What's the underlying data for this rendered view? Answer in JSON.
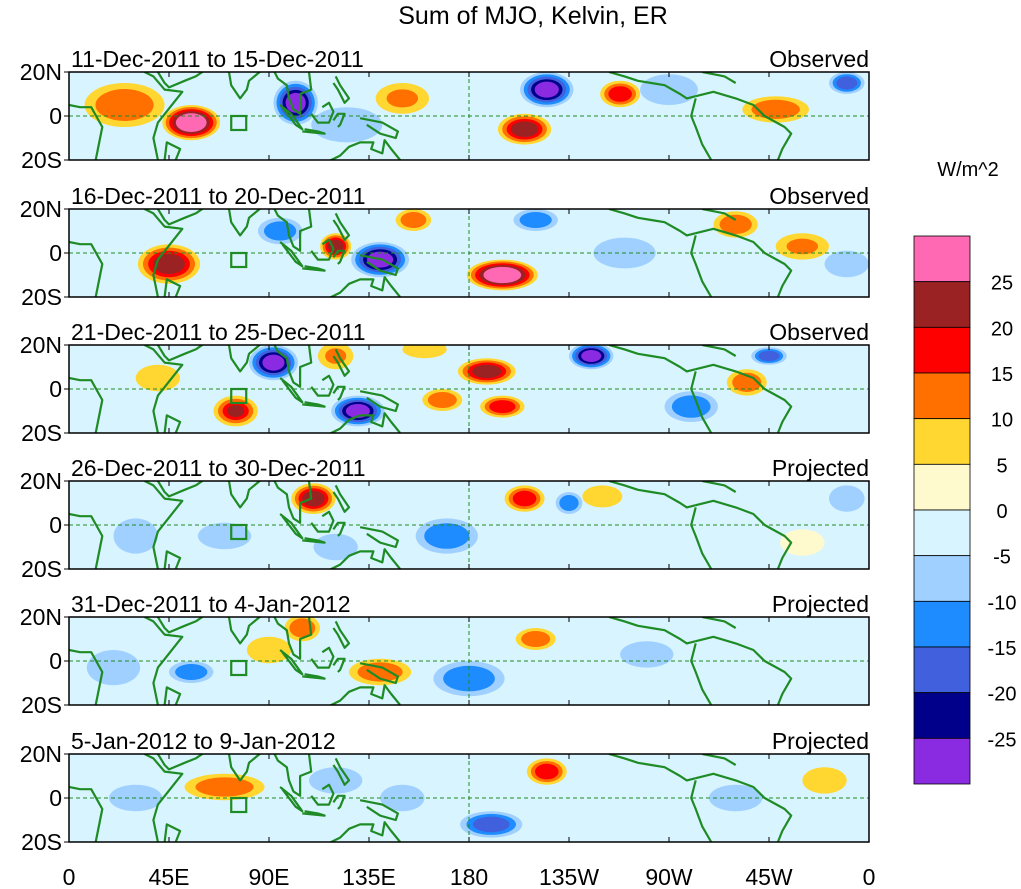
{
  "chart_data": {
    "type": "heatmap",
    "title": "Sum of MJO, Kelvin, ER",
    "units": "W/m^2",
    "lon_ticks": [
      "0",
      "45E",
      "90E",
      "135E",
      "180",
      "135W",
      "90W",
      "45W",
      "0"
    ],
    "lat_ticks": [
      "20N",
      "0",
      "20S"
    ],
    "lon_range": [
      0,
      360
    ],
    "lat_range": [
      -20,
      20
    ],
    "colorbar": {
      "labels": [
        "25",
        "20",
        "15",
        "10",
        "5",
        "0",
        "-5",
        "-10",
        "-15",
        "-20",
        "-25"
      ],
      "colors": [
        "#ff69b4",
        "#9b2222",
        "#ff0000",
        "#ff7000",
        "#ffd730",
        "#fffacd",
        "#d8f4ff",
        "#a0d0ff",
        "#1e8cff",
        "#4060dd",
        "#00008b",
        "#8a2be2"
      ]
    },
    "panels": [
      {
        "period": "11-Dec-2011 to 15-Dec-2011",
        "kind": "Observed",
        "blobs": [
          {
            "lon": 55,
            "lat": -3,
            "a": 32,
            "rx": 13,
            "ry": 8
          },
          {
            "lon": 102,
            "lat": 6,
            "a": -28,
            "rx": 10,
            "ry": 10
          },
          {
            "lon": 25,
            "lat": 5,
            "a": 12,
            "rx": 18,
            "ry": 10
          },
          {
            "lon": 205,
            "lat": -6,
            "a": 22,
            "rx": 12,
            "ry": 7
          },
          {
            "lon": 215,
            "lat": 12,
            "a": -27,
            "rx": 12,
            "ry": 8
          },
          {
            "lon": 248,
            "lat": 10,
            "a": 16,
            "rx": 9,
            "ry": 6
          },
          {
            "lon": 318,
            "lat": 3,
            "a": 14,
            "rx": 15,
            "ry": 6
          },
          {
            "lon": 125,
            "lat": -4,
            "a": -8,
            "rx": 16,
            "ry": 8
          },
          {
            "lon": 150,
            "lat": 8,
            "a": 10,
            "rx": 12,
            "ry": 7
          },
          {
            "lon": 270,
            "lat": 12,
            "a": -9,
            "rx": 13,
            "ry": 7
          },
          {
            "lon": 350,
            "lat": 15,
            "a": -18,
            "rx": 8,
            "ry": 5
          }
        ]
      },
      {
        "period": "16-Dec-2011 to 20-Dec-2011",
        "kind": "Observed",
        "blobs": [
          {
            "lon": 45,
            "lat": -5,
            "a": 24,
            "rx": 14,
            "ry": 9
          },
          {
            "lon": 195,
            "lat": -10,
            "a": 32,
            "rx": 16,
            "ry": 7
          },
          {
            "lon": 140,
            "lat": -3,
            "a": -28,
            "rx": 13,
            "ry": 8
          },
          {
            "lon": 120,
            "lat": 3,
            "a": 22,
            "rx": 7,
            "ry": 6
          },
          {
            "lon": 95,
            "lat": 10,
            "a": -12,
            "rx": 10,
            "ry": 6
          },
          {
            "lon": 155,
            "lat": 15,
            "a": 14,
            "rx": 8,
            "ry": 5
          },
          {
            "lon": 210,
            "lat": 15,
            "a": -12,
            "rx": 10,
            "ry": 5
          },
          {
            "lon": 300,
            "lat": 13,
            "a": 14,
            "rx": 10,
            "ry": 6
          },
          {
            "lon": 250,
            "lat": 0,
            "a": -9,
            "rx": 14,
            "ry": 7
          },
          {
            "lon": 330,
            "lat": 3,
            "a": 10,
            "rx": 12,
            "ry": 6
          },
          {
            "lon": 350,
            "lat": -5,
            "a": -10,
            "rx": 10,
            "ry": 6
          }
        ]
      },
      {
        "period": "21-Dec-2011 to 25-Dec-2011",
        "kind": "Observed",
        "blobs": [
          {
            "lon": 92,
            "lat": 12,
            "a": -30,
            "rx": 11,
            "ry": 8
          },
          {
            "lon": 130,
            "lat": -10,
            "a": -28,
            "rx": 12,
            "ry": 7
          },
          {
            "lon": 235,
            "lat": 15,
            "a": -27,
            "rx": 10,
            "ry": 6
          },
          {
            "lon": 315,
            "lat": 15,
            "a": -20,
            "rx": 8,
            "ry": 4
          },
          {
            "lon": 75,
            "lat": -10,
            "a": 20,
            "rx": 10,
            "ry": 7
          },
          {
            "lon": 188,
            "lat": 8,
            "a": 21,
            "rx": 13,
            "ry": 6
          },
          {
            "lon": 195,
            "lat": -8,
            "a": 18,
            "rx": 10,
            "ry": 5
          },
          {
            "lon": 168,
            "lat": -5,
            "a": 14,
            "rx": 9,
            "ry": 5
          },
          {
            "lon": 305,
            "lat": 3,
            "a": 13,
            "rx": 9,
            "ry": 6
          },
          {
            "lon": 120,
            "lat": 15,
            "a": 10,
            "rx": 8,
            "ry": 6
          },
          {
            "lon": 40,
            "lat": 5,
            "a": 8,
            "rx": 10,
            "ry": 6
          },
          {
            "lon": 280,
            "lat": -8,
            "a": -12,
            "rx": 12,
            "ry": 7
          },
          {
            "lon": 160,
            "lat": 18,
            "a": 8,
            "rx": 10,
            "ry": 4
          }
        ]
      },
      {
        "period": "26-Dec-2011 to 30-Dec-2011",
        "kind": "Projected",
        "blobs": [
          {
            "lon": 110,
            "lat": 12,
            "a": 22,
            "rx": 10,
            "ry": 7
          },
          {
            "lon": 205,
            "lat": 12,
            "a": 16,
            "rx": 9,
            "ry": 6
          },
          {
            "lon": 240,
            "lat": 13,
            "a": 7,
            "rx": 9,
            "ry": 5
          },
          {
            "lon": 225,
            "lat": 10,
            "a": -13,
            "rx": 6,
            "ry": 5
          },
          {
            "lon": 170,
            "lat": -5,
            "a": -12,
            "rx": 14,
            "ry": 8
          },
          {
            "lon": 70,
            "lat": -5,
            "a": -10,
            "rx": 12,
            "ry": 6
          },
          {
            "lon": 120,
            "lat": -10,
            "a": -9,
            "rx": 10,
            "ry": 6
          },
          {
            "lon": 30,
            "lat": -5,
            "a": -7,
            "rx": 10,
            "ry": 8
          },
          {
            "lon": 350,
            "lat": 12,
            "a": -8,
            "rx": 8,
            "ry": 6
          },
          {
            "lon": 330,
            "lat": -8,
            "a": 4,
            "rx": 10,
            "ry": 6
          }
        ]
      },
      {
        "period": "31-Dec-2011 to 4-Jan-2012",
        "kind": "Projected",
        "blobs": [
          {
            "lon": 105,
            "lat": 15,
            "a": 14,
            "rx": 8,
            "ry": 6
          },
          {
            "lon": 140,
            "lat": -5,
            "a": 12,
            "rx": 14,
            "ry": 6
          },
          {
            "lon": 210,
            "lat": 10,
            "a": 14,
            "rx": 9,
            "ry": 5
          },
          {
            "lon": 180,
            "lat": -8,
            "a": -13,
            "rx": 16,
            "ry": 8
          },
          {
            "lon": 55,
            "lat": -5,
            "a": -11,
            "rx": 10,
            "ry": 5
          },
          {
            "lon": 260,
            "lat": 3,
            "a": -8,
            "rx": 12,
            "ry": 6
          },
          {
            "lon": 20,
            "lat": -3,
            "a": -7,
            "rx": 12,
            "ry": 8
          },
          {
            "lon": 300,
            "lat": -10,
            "a": -5,
            "rx": 12,
            "ry": 6
          },
          {
            "lon": 90,
            "lat": 5,
            "a": 6,
            "rx": 10,
            "ry": 6
          }
        ]
      },
      {
        "period": "5-Jan-2012 to 9-Jan-2012",
        "kind": "Projected",
        "blobs": [
          {
            "lon": 215,
            "lat": 12,
            "a": 17,
            "rx": 9,
            "ry": 6
          },
          {
            "lon": 70,
            "lat": 5,
            "a": 11,
            "rx": 18,
            "ry": 6
          },
          {
            "lon": 190,
            "lat": -12,
            "a": -17,
            "rx": 14,
            "ry": 6
          },
          {
            "lon": 120,
            "lat": 8,
            "a": -10,
            "rx": 12,
            "ry": 6
          },
          {
            "lon": 30,
            "lat": 0,
            "a": -7,
            "rx": 12,
            "ry": 6
          },
          {
            "lon": 150,
            "lat": 0,
            "a": -6,
            "rx": 10,
            "ry": 6
          },
          {
            "lon": 300,
            "lat": 0,
            "a": -6,
            "rx": 12,
            "ry": 6
          },
          {
            "lon": 340,
            "lat": 8,
            "a": 5,
            "rx": 10,
            "ry": 6
          }
        ]
      }
    ]
  }
}
